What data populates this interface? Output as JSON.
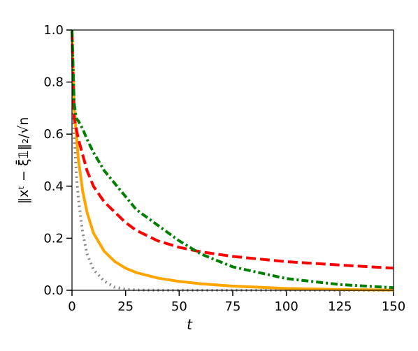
{
  "chart_data": {
    "type": "line",
    "xlabel": "t",
    "ylabel": "‖xᵗ − ξ̄𝟙‖₂/√n",
    "x": [
      0,
      1,
      2,
      3,
      5,
      7,
      10,
      15,
      20,
      25,
      30,
      40,
      50,
      60,
      75,
      100,
      125,
      150
    ],
    "series": [
      {
        "color": "#888888",
        "dash": "2,5",
        "values": [
          1.0,
          0.6,
          0.45,
          0.35,
          0.22,
          0.14,
          0.08,
          0.035,
          0.012,
          0.004,
          0.001,
          0,
          0,
          0,
          0,
          0,
          0,
          0
        ]
      },
      {
        "color": "#ffa500",
        "dash": "none",
        "values": [
          1.0,
          0.7,
          0.6,
          0.5,
          0.38,
          0.3,
          0.22,
          0.15,
          0.11,
          0.085,
          0.068,
          0.047,
          0.034,
          0.025,
          0.016,
          0.007,
          0.003,
          0.001
        ]
      },
      {
        "color": "#ff0000",
        "dash": "14,6",
        "values": [
          1.0,
          0.66,
          0.62,
          0.58,
          0.52,
          0.46,
          0.4,
          0.34,
          0.3,
          0.26,
          0.23,
          0.19,
          0.165,
          0.148,
          0.13,
          0.11,
          0.097,
          0.085
        ]
      },
      {
        "color": "#008000",
        "dash": "10,4,3,4",
        "values": [
          1.0,
          0.72,
          0.66,
          0.65,
          0.62,
          0.58,
          0.53,
          0.46,
          0.41,
          0.36,
          0.31,
          0.25,
          0.19,
          0.14,
          0.09,
          0.045,
          0.022,
          0.01
        ]
      }
    ],
    "xlim": [
      0,
      150
    ],
    "xticks": [
      0,
      25,
      50,
      75,
      100,
      125,
      150
    ],
    "ylim": [
      0,
      1.0
    ],
    "yticks": [
      {
        "value": 0,
        "label": "0.0"
      },
      0.2,
      0.4,
      0.6,
      0.8,
      {
        "value": 1.0,
        "label": "1.0"
      }
    ],
    "grid": false
  }
}
